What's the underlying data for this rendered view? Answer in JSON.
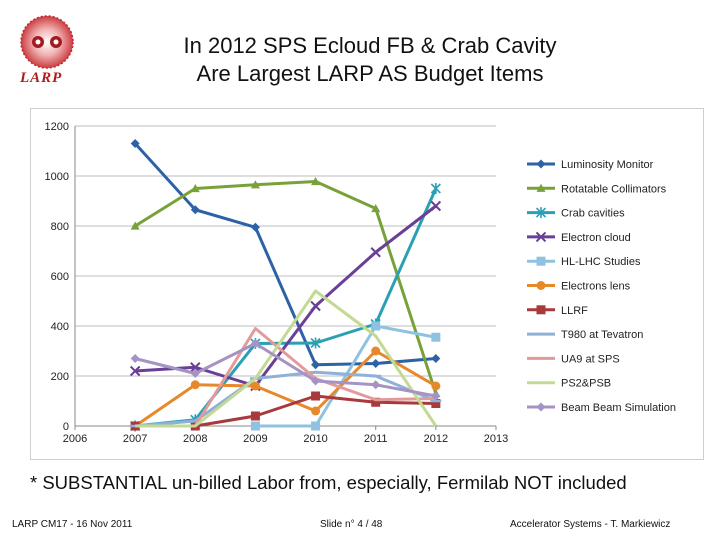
{
  "slide": {
    "title_line1": "In 2012 SPS Ecloud FB & Crab Cavity",
    "title_line2": "Are Largest LARP AS Budget Items",
    "logo_text": "LARP",
    "note": "* SUBSTANTIAL un-billed Labor from, especially, Fermilab NOT included",
    "footer_left": "LARP CM17 - 16 Nov 2011",
    "footer_center": "Slide n° 4 / 48",
    "footer_right": "Accelerator Systems - T. Markiewicz"
  },
  "chart_data": {
    "type": "line",
    "title": "",
    "xlabel": "",
    "ylabel": "",
    "xlim": [
      2006,
      2013
    ],
    "ylim": [
      0,
      1200
    ],
    "x_ticks": [
      2006,
      2007,
      2008,
      2009,
      2010,
      2011,
      2012,
      2013
    ],
    "y_ticks": [
      0,
      200,
      400,
      600,
      800,
      1000,
      1200
    ],
    "grid": "horizontal",
    "legend_position": "right",
    "series": [
      {
        "name": "Luminosity Monitor",
        "color": "#2e62a6",
        "marker": "diamond",
        "points": [
          [
            2007,
            1130
          ],
          [
            2008,
            865
          ],
          [
            2009,
            795
          ],
          [
            2010,
            245
          ],
          [
            2011,
            250
          ],
          [
            2012,
            270
          ]
        ]
      },
      {
        "name": "Rotatable Collimators",
        "color": "#78a13a",
        "marker": "triangle",
        "points": [
          [
            2007,
            800
          ],
          [
            2008,
            950
          ],
          [
            2009,
            965
          ],
          [
            2010,
            978
          ],
          [
            2011,
            870
          ],
          [
            2012,
            130
          ]
        ]
      },
      {
        "name": "Crab cavities",
        "color": "#2aa0b5",
        "marker": "star",
        "points": [
          [
            2007,
            0
          ],
          [
            2008,
            25
          ],
          [
            2009,
            330
          ],
          [
            2010,
            332
          ],
          [
            2011,
            408
          ],
          [
            2012,
            950
          ]
        ]
      },
      {
        "name": "Electron cloud",
        "color": "#6a3f96",
        "marker": "x",
        "points": [
          [
            2007,
            220
          ],
          [
            2008,
            235
          ],
          [
            2009,
            160
          ],
          [
            2010,
            480
          ],
          [
            2011,
            695
          ],
          [
            2012,
            880
          ]
        ]
      },
      {
        "name": "HL-LHC Studies",
        "color": "#8ec2e0",
        "marker": "square",
        "points": [
          [
            2009,
            0
          ],
          [
            2010,
            0
          ],
          [
            2011,
            400
          ],
          [
            2012,
            355
          ]
        ]
      },
      {
        "name": "Electrons lens",
        "color": "#e7892b",
        "marker": "circle",
        "points": [
          [
            2007,
            0
          ],
          [
            2008,
            165
          ],
          [
            2009,
            160
          ],
          [
            2010,
            60
          ],
          [
            2011,
            300
          ],
          [
            2012,
            160
          ]
        ]
      },
      {
        "name": "LLRF",
        "color": "#a83a3c",
        "marker": "square",
        "points": [
          [
            2007,
            0
          ],
          [
            2008,
            0
          ],
          [
            2009,
            40
          ],
          [
            2010,
            120
          ],
          [
            2011,
            95
          ],
          [
            2012,
            90
          ]
        ]
      },
      {
        "name": "T980 at Tevatron",
        "color": "#8fb0d8",
        "marker": "dash",
        "points": [
          [
            2007,
            0
          ],
          [
            2008,
            20
          ],
          [
            2009,
            190
          ],
          [
            2010,
            215
          ],
          [
            2011,
            200
          ],
          [
            2012,
            100
          ]
        ]
      },
      {
        "name": "UA9 at SPS",
        "color": "#e39a9b",
        "marker": "none",
        "points": [
          [
            2007,
            0
          ],
          [
            2008,
            0
          ],
          [
            2009,
            390
          ],
          [
            2010,
            190
          ],
          [
            2011,
            105
          ],
          [
            2012,
            110
          ]
        ]
      },
      {
        "name": "PS2&PSB",
        "color": "#c3da94",
        "marker": "none",
        "points": [
          [
            2007,
            0
          ],
          [
            2008,
            0
          ],
          [
            2009,
            190
          ],
          [
            2010,
            540
          ],
          [
            2011,
            360
          ],
          [
            2012,
            0
          ]
        ]
      },
      {
        "name": "Beam Beam Simulation",
        "color": "#a493c4",
        "marker": "diamond",
        "points": [
          [
            2007,
            270
          ],
          [
            2008,
            210
          ],
          [
            2009,
            330
          ],
          [
            2010,
            180
          ],
          [
            2011,
            165
          ],
          [
            2012,
            120
          ]
        ]
      }
    ]
  }
}
